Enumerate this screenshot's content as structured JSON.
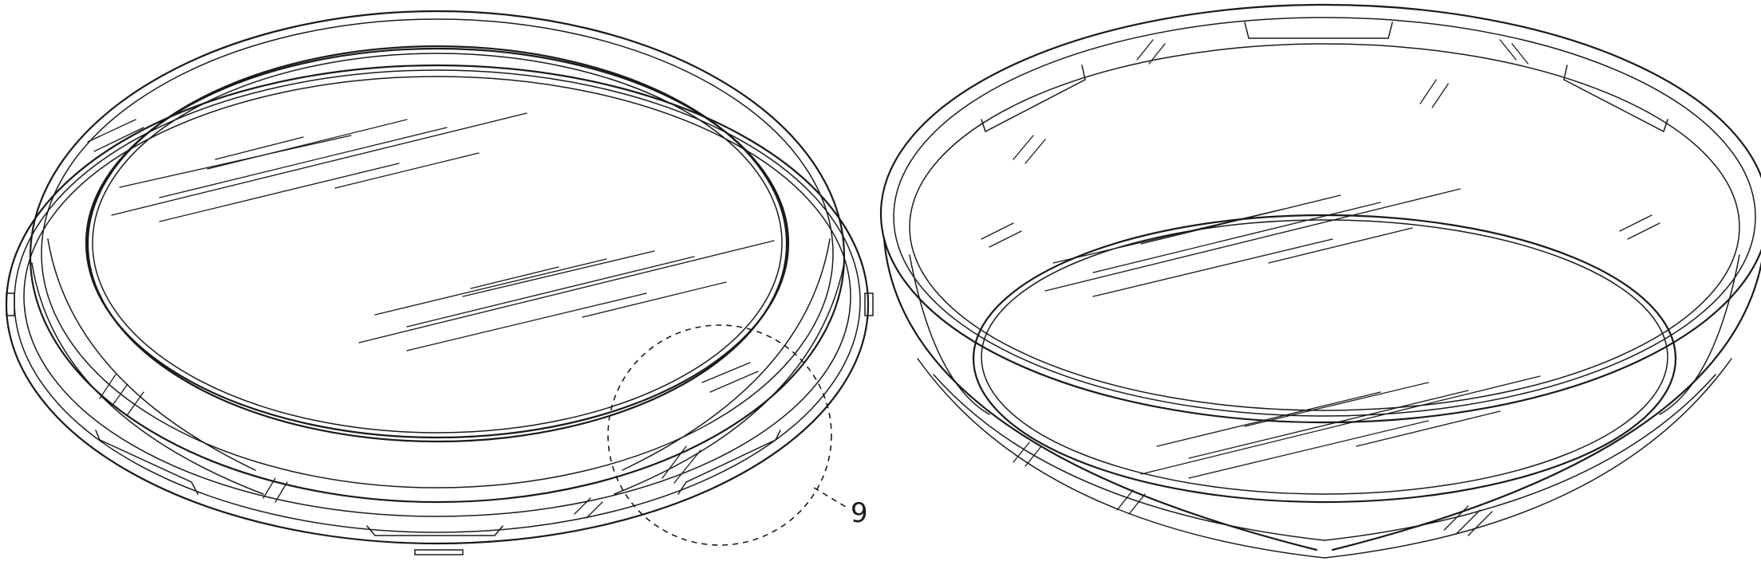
{
  "detail_callout": {
    "reference_label": "9"
  }
}
